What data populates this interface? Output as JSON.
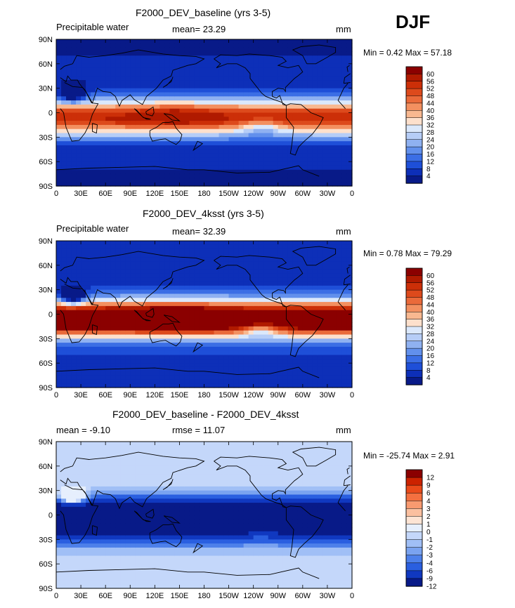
{
  "season": "DJF",
  "x_ticks": [
    "0",
    "30E",
    "60E",
    "90E",
    "120E",
    "150E",
    "180",
    "150W",
    "120W",
    "90W",
    "60W",
    "30W",
    "0"
  ],
  "y_ticks": [
    "90N",
    "60N",
    "30N",
    "0",
    "30S",
    "60S",
    "90S"
  ],
  "panels": [
    {
      "title": "F2000_DEV_baseline (yrs 3-5)",
      "left_label": "Precipitable water",
      "stat_text": "mean=  23.29",
      "units": "mm",
      "minmax": "Min =   0.42 Max =  57.18",
      "kind": "abs",
      "colorbar_labels": [
        "60",
        "56",
        "52",
        "48",
        "44",
        "40",
        "36",
        "32",
        "28",
        "24",
        "20",
        "16",
        "12",
        "8",
        "4"
      ]
    },
    {
      "title": "F2000_DEV_4ksst (yrs 3-5)",
      "left_label": "Precipitable water",
      "stat_text": "mean=  32.39",
      "units": "mm",
      "minmax": "Min =   0.78 Max =  79.29",
      "kind": "abs4k",
      "colorbar_labels": [
        "60",
        "56",
        "52",
        "48",
        "44",
        "40",
        "36",
        "32",
        "28",
        "24",
        "20",
        "16",
        "12",
        "8",
        "4"
      ]
    },
    {
      "title": "F2000_DEV_baseline - F2000_DEV_4ksst",
      "left_label": "mean =  -9.10",
      "stat_text": "rmse =  11.07",
      "units": "mm",
      "minmax": "Min = -25.74 Max =   2.91",
      "kind": "diff",
      "colorbar_labels": [
        "12",
        "9",
        "6",
        "4",
        "3",
        "2",
        "1",
        "0",
        "-1",
        "-2",
        "-3",
        "-4",
        "-6",
        "-9",
        "-12"
      ]
    }
  ],
  "colors": {
    "abs": [
      "#8b0000",
      "#b01a00",
      "#cc2f08",
      "#dd4a1c",
      "#ea6a3a",
      "#f39060",
      "#f8b890",
      "#fde0cc",
      "#dbe8fb",
      "#b6cdf7",
      "#8fb1f1",
      "#6290ec",
      "#3b6ee5",
      "#1e4fd8",
      "#0d2fb8",
      "#081a88"
    ],
    "diff": [
      "#8b0000",
      "#cc2200",
      "#ea4a1a",
      "#f47040",
      "#f89a70",
      "#fbc0a0",
      "#fde4d4",
      "#e6effd",
      "#c4d7fa",
      "#a0bff6",
      "#7aa3f0",
      "#4d80ea",
      "#2a5fe0",
      "#1038c0",
      "#081a88"
    ]
  }
}
